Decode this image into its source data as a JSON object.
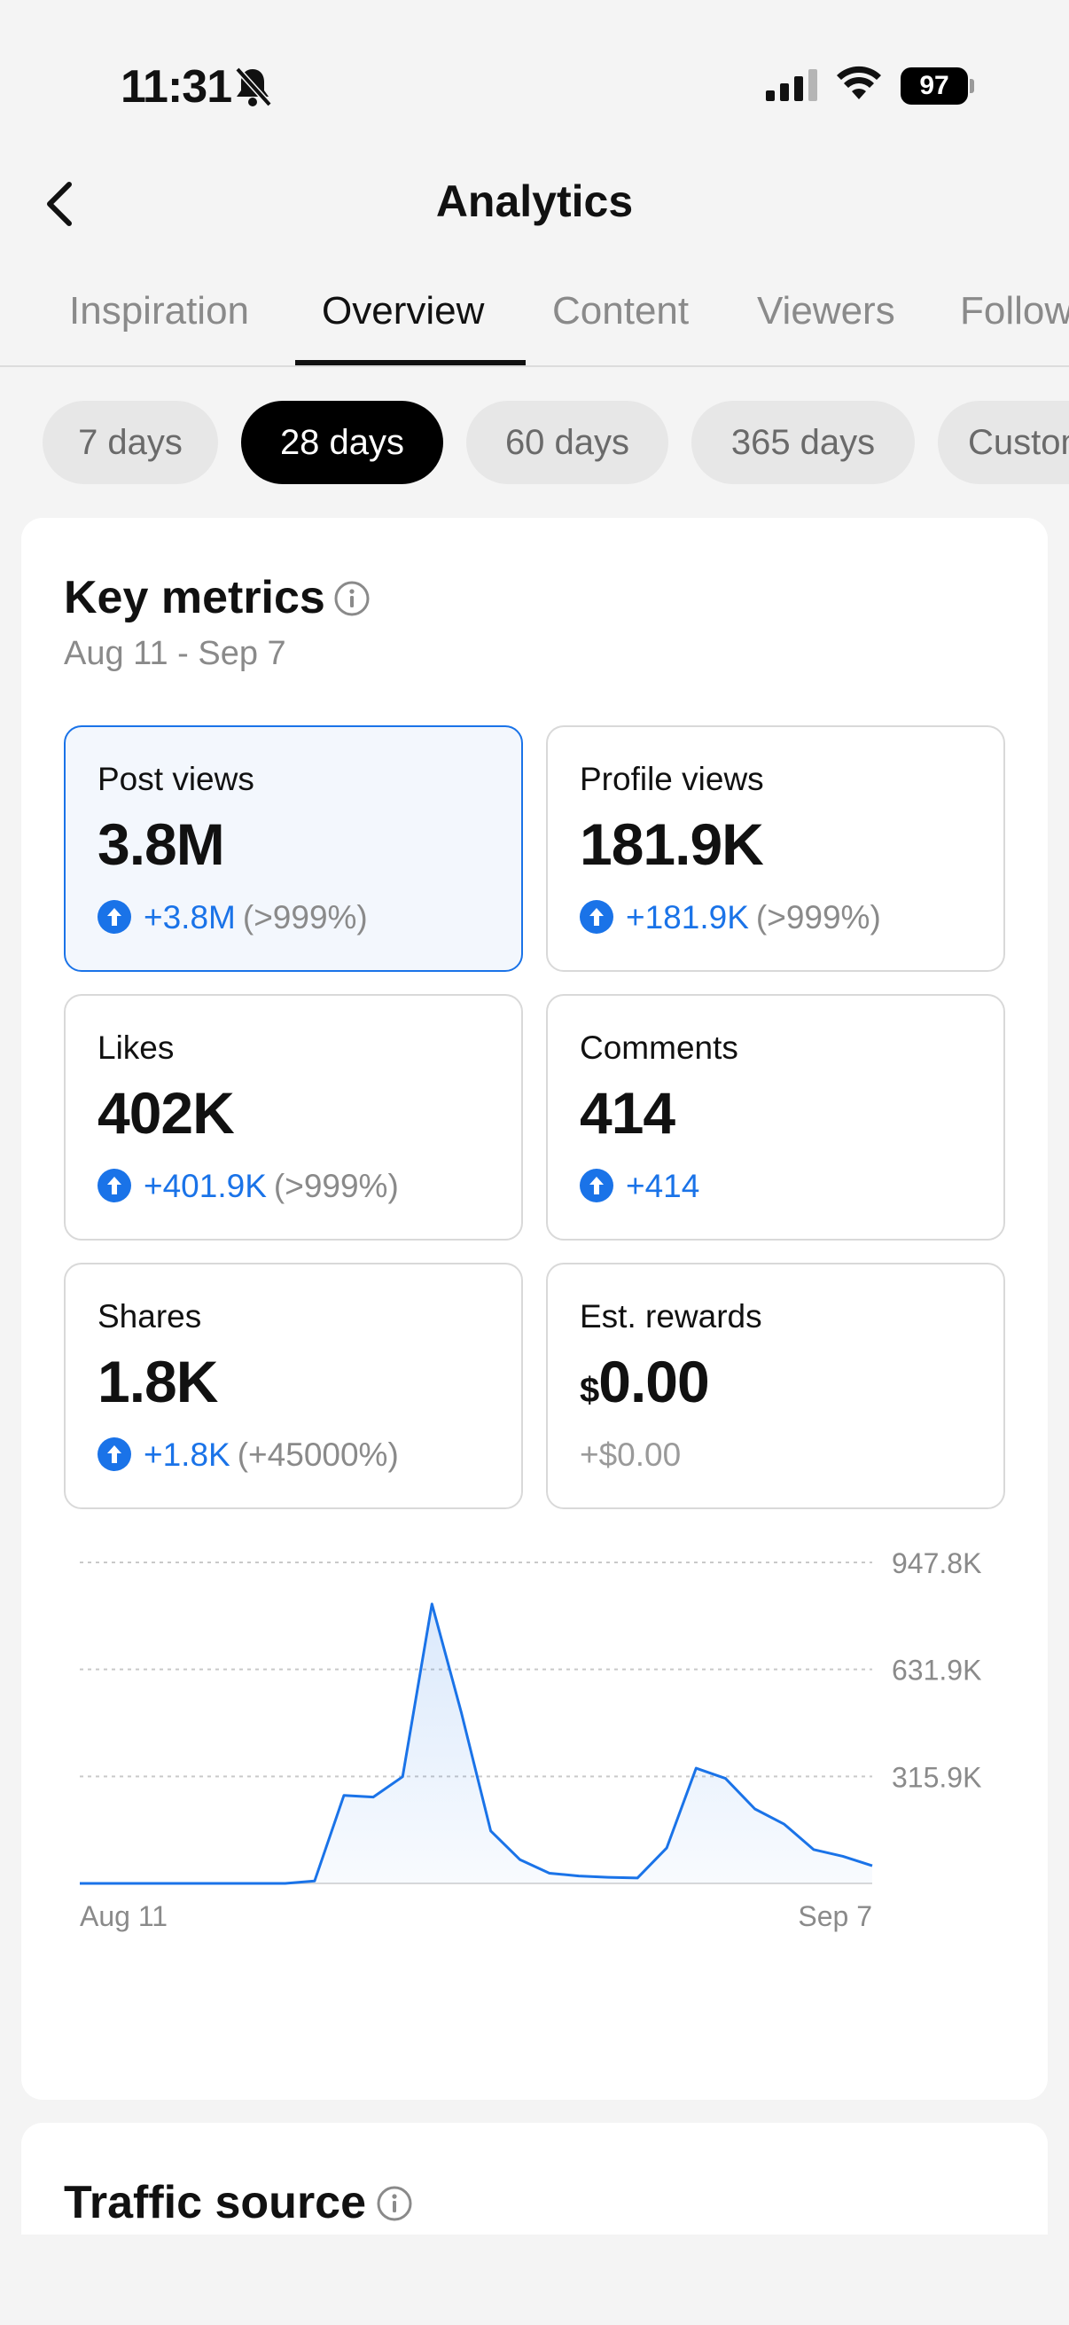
{
  "status_bar": {
    "time": "11:31",
    "battery": "97"
  },
  "header": {
    "title": "Analytics"
  },
  "tabs": [
    {
      "label": "Inspiration"
    },
    {
      "label": "Overview"
    },
    {
      "label": "Content"
    },
    {
      "label": "Viewers"
    },
    {
      "label": "Followers"
    }
  ],
  "active_tab": "Overview",
  "ranges": [
    {
      "label": "7 days"
    },
    {
      "label": "28 days"
    },
    {
      "label": "60 days"
    },
    {
      "label": "365 days"
    },
    {
      "label": "Custom"
    }
  ],
  "active_range": "28 days",
  "key_metrics": {
    "title": "Key metrics",
    "date_range": "Aug 11 - Sep 7",
    "metrics": [
      {
        "label": "Post views",
        "value": "3.8M",
        "change": "+3.8M",
        "percent": "(>999%)"
      },
      {
        "label": "Profile views",
        "value": "181.9K",
        "change": "+181.9K",
        "percent": "(>999%)"
      },
      {
        "label": "Likes",
        "value": "402K",
        "change": "+401.9K",
        "percent": "(>999%)"
      },
      {
        "label": "Comments",
        "value": "414",
        "change": "+414",
        "percent": ""
      },
      {
        "label": "Shares",
        "value": "1.8K",
        "change": "+1.8K",
        "percent": "(+45000%)"
      },
      {
        "label": "Est. rewards",
        "currency": "$",
        "value": "0.00",
        "change": "+$0.00",
        "percent": ""
      }
    ]
  },
  "chart_data": {
    "type": "area",
    "x_start_label": "Aug 11",
    "x_end_label": "Sep 7",
    "y_ticks": [
      "947.8K",
      "631.9K",
      "315.9K"
    ],
    "y_tick_values": [
      947800,
      631900,
      315900
    ],
    "ylim": [
      0,
      947800
    ],
    "values": [
      0,
      0,
      0,
      0,
      0,
      0,
      0,
      0,
      7000,
      260000,
      255000,
      315000,
      825000,
      505000,
      155000,
      70000,
      30000,
      22000,
      18000,
      16000,
      105000,
      340000,
      310000,
      220000,
      175000,
      100000,
      80000,
      52000
    ],
    "color": "#1a73e8"
  },
  "traffic_source": {
    "title": "Traffic source"
  }
}
